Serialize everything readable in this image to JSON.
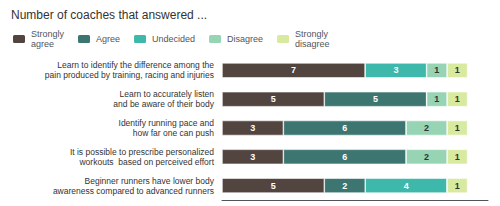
{
  "chart_data": {
    "type": "bar",
    "orientation": "horizontal",
    "stacked": true,
    "data_labels": true,
    "title": "Number of coaches that answered ...",
    "categories": [
      "Learn to identify the difference among the\npain produced by training, racing and injuries",
      "Learn to accurately listen\nand be aware of their body",
      "Identify running pace and\nhow far one can push",
      "It is possible to prescribe personalized\nworkouts  based on perceived effort",
      "Beginner runners have lower body\nawareness compared to advanced runners"
    ],
    "series": [
      {
        "name": "Strongly\nagree",
        "color": "#52443e",
        "values": [
          7,
          5,
          3,
          3,
          5
        ]
      },
      {
        "name": "Agree",
        "color": "#3d7571",
        "values": [
          0,
          5,
          6,
          6,
          2
        ]
      },
      {
        "name": "Undecided",
        "color": "#3db8aa",
        "values": [
          3,
          0,
          0,
          0,
          4
        ]
      },
      {
        "name": "Disagree",
        "color": "#96d4b4",
        "values": [
          1,
          1,
          2,
          2,
          0
        ]
      },
      {
        "name": "Strongly\ndisagree",
        "color": "#d8eaa0",
        "values": [
          1,
          1,
          1,
          1,
          1
        ]
      }
    ],
    "xlim": [
      0,
      13
    ],
    "tick_labels": "y",
    "grid": false,
    "legend": "upper left"
  }
}
